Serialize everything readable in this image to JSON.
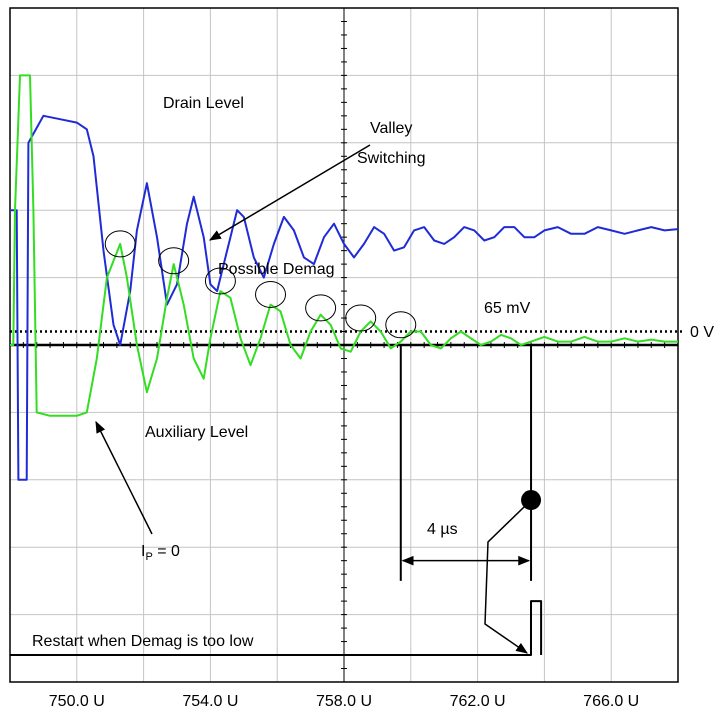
{
  "chart_data": {
    "type": "line",
    "title": "",
    "xlabel": "",
    "ylabel": "",
    "x_unit_suffix": "U",
    "xlim": [
      748.0,
      768.0
    ],
    "ylim": [
      -5,
      5
    ],
    "grid": true,
    "x_tick_labels": [
      "750.0 U",
      "754.0 U",
      "758.0 U",
      "762.0 U",
      "766.0 U"
    ],
    "x_tick_values": [
      750.0,
      754.0,
      758.0,
      762.0,
      766.0
    ],
    "series": [
      {
        "name": "Drain Level",
        "color": "#1f2bd6",
        "points": [
          [
            748.0,
            2.0
          ],
          [
            748.2,
            2.0
          ],
          [
            748.25,
            -2.0
          ],
          [
            748.5,
            -2.0
          ],
          [
            748.55,
            3.0
          ],
          [
            749.0,
            3.4
          ],
          [
            749.5,
            3.35
          ],
          [
            750.0,
            3.3
          ],
          [
            750.3,
            3.2
          ],
          [
            750.5,
            2.8
          ],
          [
            750.8,
            1.4
          ],
          [
            751.1,
            0.3
          ],
          [
            751.3,
            0.0
          ],
          [
            751.6,
            0.8
          ],
          [
            751.8,
            1.7
          ],
          [
            752.1,
            2.4
          ],
          [
            752.4,
            1.6
          ],
          [
            752.7,
            0.6
          ],
          [
            753.0,
            0.9
          ],
          [
            753.3,
            1.8
          ],
          [
            753.5,
            2.2
          ],
          [
            753.8,
            1.6
          ],
          [
            754.0,
            0.9
          ],
          [
            754.2,
            0.8
          ],
          [
            754.5,
            1.4
          ],
          [
            754.8,
            2.0
          ],
          [
            755.0,
            1.9
          ],
          [
            755.3,
            1.3
          ],
          [
            755.6,
            1.0
          ],
          [
            755.9,
            1.5
          ],
          [
            756.2,
            1.9
          ],
          [
            756.5,
            1.7
          ],
          [
            756.8,
            1.3
          ],
          [
            757.1,
            1.2
          ],
          [
            757.4,
            1.6
          ],
          [
            757.7,
            1.8
          ],
          [
            758.0,
            1.5
          ],
          [
            758.3,
            1.3
          ],
          [
            758.6,
            1.5
          ],
          [
            758.9,
            1.75
          ],
          [
            759.2,
            1.65
          ],
          [
            759.5,
            1.4
          ],
          [
            759.8,
            1.45
          ],
          [
            760.1,
            1.7
          ],
          [
            760.4,
            1.75
          ],
          [
            760.7,
            1.55
          ],
          [
            761.0,
            1.5
          ],
          [
            761.3,
            1.6
          ],
          [
            761.6,
            1.75
          ],
          [
            761.9,
            1.7
          ],
          [
            762.2,
            1.55
          ],
          [
            762.5,
            1.6
          ],
          [
            762.8,
            1.75
          ],
          [
            763.1,
            1.75
          ],
          [
            763.4,
            1.6
          ],
          [
            763.7,
            1.6
          ],
          [
            764.0,
            1.7
          ],
          [
            764.4,
            1.75
          ],
          [
            764.8,
            1.65
          ],
          [
            765.2,
            1.65
          ],
          [
            765.6,
            1.75
          ],
          [
            766.0,
            1.7
          ],
          [
            766.4,
            1.65
          ],
          [
            766.8,
            1.7
          ],
          [
            767.2,
            1.75
          ],
          [
            767.6,
            1.7
          ],
          [
            768.0,
            1.72
          ]
        ]
      },
      {
        "name": "Auxiliary Level",
        "color": "#33dd22",
        "points": [
          [
            748.0,
            0.0
          ],
          [
            748.1,
            0.0
          ],
          [
            748.15,
            2.0
          ],
          [
            748.3,
            4.0
          ],
          [
            748.6,
            4.0
          ],
          [
            748.7,
            2.0
          ],
          [
            748.8,
            -1.0
          ],
          [
            749.2,
            -1.05
          ],
          [
            749.6,
            -1.05
          ],
          [
            750.0,
            -1.05
          ],
          [
            750.3,
            -1.0
          ],
          [
            750.6,
            -0.2
          ],
          [
            750.9,
            1.0
          ],
          [
            751.3,
            1.5
          ],
          [
            751.5,
            1.0
          ],
          [
            751.8,
            0.0
          ],
          [
            752.1,
            -0.7
          ],
          [
            752.4,
            -0.2
          ],
          [
            752.7,
            0.7
          ],
          [
            752.9,
            1.2
          ],
          [
            753.2,
            0.6
          ],
          [
            753.5,
            -0.2
          ],
          [
            753.8,
            -0.5
          ],
          [
            754.0,
            0.1
          ],
          [
            754.3,
            0.8
          ],
          [
            754.6,
            0.7
          ],
          [
            754.9,
            0.1
          ],
          [
            755.2,
            -0.3
          ],
          [
            755.5,
            0.1
          ],
          [
            755.8,
            0.6
          ],
          [
            756.1,
            0.5
          ],
          [
            756.4,
            0.0
          ],
          [
            756.7,
            -0.2
          ],
          [
            757.0,
            0.2
          ],
          [
            757.3,
            0.45
          ],
          [
            757.6,
            0.3
          ],
          [
            757.9,
            -0.05
          ],
          [
            758.2,
            -0.1
          ],
          [
            758.5,
            0.2
          ],
          [
            758.8,
            0.35
          ],
          [
            759.1,
            0.2
          ],
          [
            759.4,
            -0.05
          ],
          [
            759.7,
            0.05
          ],
          [
            760.0,
            0.2
          ],
          [
            760.3,
            0.2
          ],
          [
            760.6,
            0.0
          ],
          [
            760.9,
            -0.05
          ],
          [
            761.2,
            0.1
          ],
          [
            761.5,
            0.2
          ],
          [
            761.8,
            0.1
          ],
          [
            762.1,
            0.0
          ],
          [
            762.4,
            0.05
          ],
          [
            762.7,
            0.15
          ],
          [
            763.0,
            0.1
          ],
          [
            763.3,
            0.0
          ],
          [
            763.6,
            0.05
          ],
          [
            764.0,
            0.12
          ],
          [
            764.4,
            0.05
          ],
          [
            764.8,
            0.05
          ],
          [
            765.2,
            0.12
          ],
          [
            765.6,
            0.05
          ],
          [
            766.0,
            0.05
          ],
          [
            766.4,
            0.1
          ],
          [
            766.8,
            0.05
          ],
          [
            767.2,
            0.08
          ],
          [
            767.6,
            0.05
          ],
          [
            768.0,
            0.05
          ]
        ]
      },
      {
        "name": "Restart",
        "color": "#000000",
        "points": [
          [
            748.0,
            -4.6
          ],
          [
            753.0,
            -4.6
          ],
          [
            758.0,
            -4.6
          ],
          [
            763.0,
            -4.6
          ],
          [
            763.6,
            -4.6
          ],
          [
            763.6,
            -3.8
          ],
          [
            763.9,
            -3.8
          ],
          [
            763.9,
            -4.6
          ]
        ]
      }
    ],
    "threshold": {
      "y": 0.2,
      "style": "dotted"
    },
    "reference_y": 0.0,
    "vertical_markers": [
      {
        "x": 759.7,
        "y_from": 0.0,
        "y_to": -3.5
      },
      {
        "x": 763.6,
        "y_from": 0.0,
        "y_to": -3.5
      }
    ],
    "demag_circles": [
      {
        "x": 751.3,
        "y": 1.5
      },
      {
        "x": 752.9,
        "y": 1.25
      },
      {
        "x": 754.3,
        "y": 0.95
      },
      {
        "x": 755.8,
        "y": 0.75
      },
      {
        "x": 757.3,
        "y": 0.55
      },
      {
        "x": 758.5,
        "y": 0.4
      },
      {
        "x": 759.7,
        "y": 0.3
      }
    ],
    "dot": {
      "x": 763.6,
      "y": -2.3
    },
    "interval_arrow": {
      "x_from": 759.7,
      "x_to": 763.6,
      "y": -3.2
    },
    "annotations": {
      "drain_level": "Drain Level",
      "valley_switching_line1": "Valley",
      "valley_switching_line2": "Switching",
      "possible_demag": "Possible Demag",
      "threshold_mv": "65 mV",
      "zero_v": "0 V",
      "auxiliary_level": "Auxiliary Level",
      "ip_main": "I",
      "ip_sub": "P",
      "ip_rest": " = 0",
      "interval": "4 µs",
      "restart": "Restart when Demag is too low"
    }
  }
}
